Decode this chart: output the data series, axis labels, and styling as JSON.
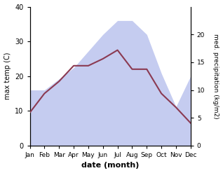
{
  "months": [
    "Jan",
    "Feb",
    "Mar",
    "Apr",
    "May",
    "Jun",
    "Jul",
    "Aug",
    "Sep",
    "Oct",
    "Nov",
    "Dec"
  ],
  "month_positions": [
    0,
    1,
    2,
    3,
    4,
    5,
    6,
    7,
    8,
    9,
    10,
    11
  ],
  "temperature": [
    9.5,
    15.0,
    18.5,
    23.0,
    23.0,
    25.0,
    27.5,
    22.0,
    22.0,
    15.0,
    11.0,
    6.5
  ],
  "precipitation": [
    10.0,
    10.0,
    12.0,
    14.0,
    17.0,
    20.0,
    22.5,
    22.5,
    20.0,
    13.0,
    7.0,
    12.5
  ],
  "temp_color": "#8B3A52",
  "precip_fill_color": "#c5ccf0",
  "temp_ylim": [
    0,
    40
  ],
  "precip_ylim": [
    0,
    25
  ],
  "precip_right_ticks": [
    0,
    5,
    10,
    15,
    20
  ],
  "temp_left_ticks": [
    0,
    10,
    20,
    30,
    40
  ],
  "xlabel": "date (month)",
  "ylabel_left": "max temp (C)",
  "ylabel_right": "med. precipitation (kg/m2)",
  "figsize": [
    3.18,
    2.47
  ],
  "dpi": 100
}
